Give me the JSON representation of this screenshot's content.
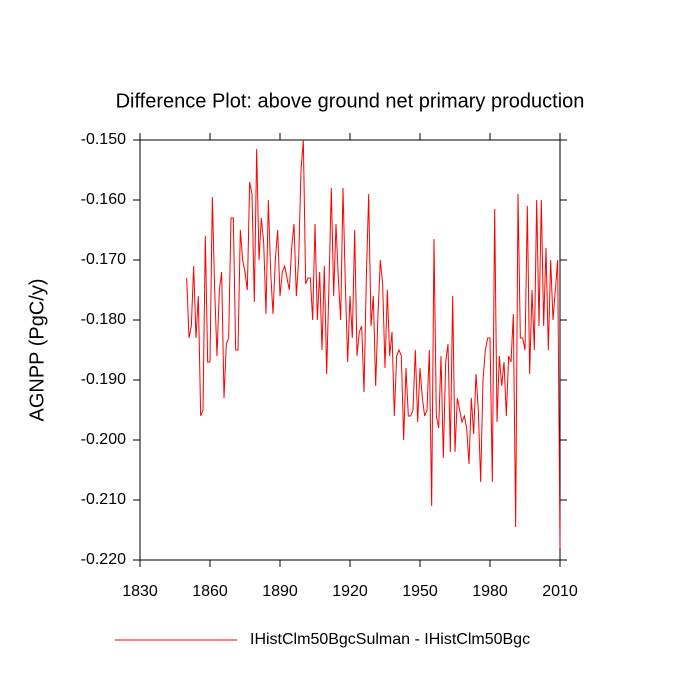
{
  "chart_data": {
    "type": "line",
    "title": "Difference Plot: above ground net primary production",
    "y_label": "AGNPP  (PgC/y)",
    "x": [
      1850,
      1851,
      1852,
      1853,
      1854,
      1855,
      1856,
      1857,
      1858,
      1859,
      1860,
      1861,
      1862,
      1863,
      1864,
      1865,
      1866,
      1867,
      1868,
      1869,
      1870,
      1871,
      1872,
      1873,
      1874,
      1875,
      1876,
      1877,
      1878,
      1879,
      1880,
      1881,
      1882,
      1883,
      1884,
      1885,
      1886,
      1887,
      1888,
      1889,
      1890,
      1891,
      1892,
      1893,
      1894,
      1895,
      1896,
      1897,
      1898,
      1899,
      1900,
      1901,
      1902,
      1903,
      1904,
      1905,
      1906,
      1907,
      1908,
      1909,
      1910,
      1911,
      1912,
      1913,
      1914,
      1915,
      1916,
      1917,
      1918,
      1919,
      1920,
      1921,
      1922,
      1923,
      1924,
      1925,
      1926,
      1927,
      1928,
      1929,
      1930,
      1931,
      1932,
      1933,
      1934,
      1935,
      1936,
      1937,
      1938,
      1939,
      1940,
      1941,
      1942,
      1943,
      1944,
      1945,
      1946,
      1947,
      1948,
      1949,
      1950,
      1951,
      1952,
      1953,
      1954,
      1955,
      1956,
      1957,
      1958,
      1959,
      1960,
      1961,
      1962,
      1963,
      1964,
      1965,
      1966,
      1967,
      1968,
      1969,
      1970,
      1971,
      1972,
      1973,
      1974,
      1975,
      1976,
      1977,
      1978,
      1979,
      1980,
      1981,
      1982,
      1983,
      1984,
      1985,
      1986,
      1987,
      1988,
      1989,
      1990,
      1991,
      1992,
      1993,
      1994,
      1995,
      1996,
      1997,
      1998,
      1999,
      2000,
      2001,
      2002,
      2003,
      2004,
      2005,
      2006,
      2007,
      2008,
      2009,
      2010
    ],
    "series": [
      {
        "name": "IHistClm50BgcSulman - IHistClm50Bgc",
        "color": "#ff0000",
        "values": [
          -0.173,
          -0.183,
          -0.181,
          -0.171,
          -0.183,
          -0.176,
          -0.196,
          -0.195,
          -0.166,
          -0.187,
          -0.187,
          -0.1595,
          -0.175,
          -0.186,
          -0.175,
          -0.172,
          -0.193,
          -0.184,
          -0.183,
          -0.163,
          -0.163,
          -0.185,
          -0.185,
          -0.165,
          -0.17,
          -0.172,
          -0.175,
          -0.157,
          -0.159,
          -0.177,
          -0.1515,
          -0.17,
          -0.163,
          -0.167,
          -0.179,
          -0.16,
          -0.172,
          -0.179,
          -0.17,
          -0.165,
          -0.176,
          -0.172,
          -0.171,
          -0.173,
          -0.175,
          -0.168,
          -0.164,
          -0.176,
          -0.17,
          -0.155,
          -0.15,
          -0.174,
          -0.173,
          -0.173,
          -0.18,
          -0.164,
          -0.18,
          -0.172,
          -0.185,
          -0.171,
          -0.189,
          -0.174,
          -0.158,
          -0.176,
          -0.164,
          -0.173,
          -0.18,
          -0.158,
          -0.174,
          -0.187,
          -0.176,
          -0.183,
          -0.165,
          -0.186,
          -0.182,
          -0.181,
          -0.192,
          -0.173,
          -0.159,
          -0.181,
          -0.176,
          -0.191,
          -0.179,
          -0.17,
          -0.174,
          -0.188,
          -0.175,
          -0.186,
          -0.182,
          -0.196,
          -0.186,
          -0.185,
          -0.186,
          -0.2,
          -0.188,
          -0.196,
          -0.196,
          -0.195,
          -0.185,
          -0.197,
          -0.188,
          -0.193,
          -0.196,
          -0.195,
          -0.185,
          -0.211,
          -0.1665,
          -0.196,
          -0.198,
          -0.186,
          -0.203,
          -0.187,
          -0.184,
          -0.202,
          -0.176,
          -0.202,
          -0.193,
          -0.195,
          -0.197,
          -0.196,
          -0.198,
          -0.204,
          -0.193,
          -0.199,
          -0.189,
          -0.195,
          -0.207,
          -0.19,
          -0.185,
          -0.183,
          -0.183,
          -0.207,
          -0.1615,
          -0.197,
          -0.186,
          -0.191,
          -0.187,
          -0.196,
          -0.186,
          -0.187,
          -0.179,
          -0.2145,
          -0.159,
          -0.183,
          -0.183,
          -0.185,
          -0.161,
          -0.189,
          -0.175,
          -0.185,
          -0.16,
          -0.181,
          -0.16,
          -0.181,
          -0.168,
          -0.185,
          -0.17,
          -0.18,
          -0.175,
          -0.17,
          -0.218
        ]
      }
    ],
    "xlim": [
      1830,
      2010
    ],
    "ylim": [
      -0.22,
      -0.15
    ],
    "xticks": [
      1830,
      1860,
      1890,
      1920,
      1950,
      1980,
      2010
    ],
    "yticks": [
      {
        "value": -0.15,
        "label": "-0.150"
      },
      {
        "value": -0.16,
        "label": "-0.160"
      },
      {
        "value": -0.17,
        "label": "-0.170"
      },
      {
        "value": -0.18,
        "label": "-0.180"
      },
      {
        "value": -0.19,
        "label": "-0.190"
      },
      {
        "value": -0.2,
        "label": "-0.200"
      },
      {
        "value": -0.21,
        "label": "-0.210"
      },
      {
        "value": -0.22,
        "label": "-0.220"
      }
    ]
  }
}
